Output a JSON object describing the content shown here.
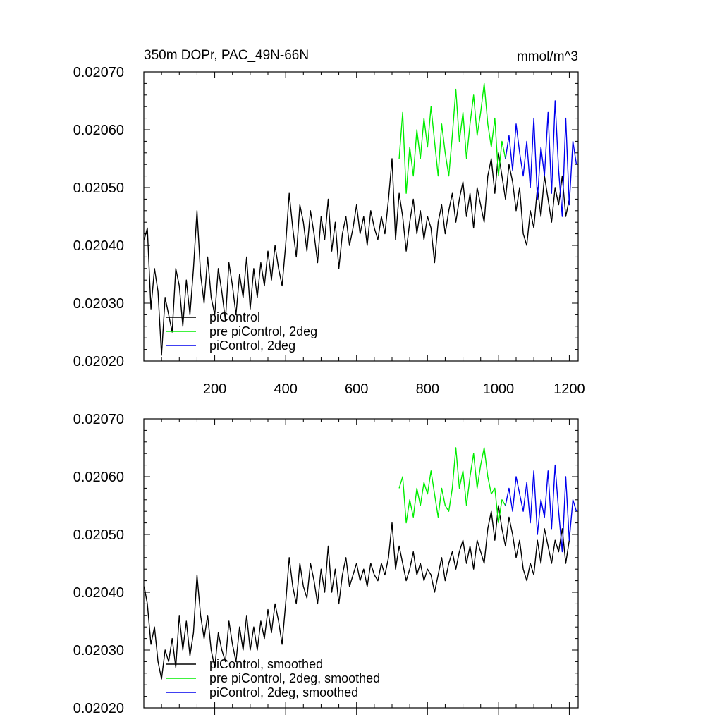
{
  "figure": {
    "title": "350m DOPr, PAC_49N-66N",
    "units": "mmol/m^3"
  },
  "colors": {
    "piControl": "#000000",
    "pre_2deg": "#00ee00",
    "pic_2deg": "#0000ee"
  },
  "chart_data": [
    {
      "type": "line",
      "panel": "top",
      "title": "350m DOPr, PAC_49N-66N",
      "units_label": "mmol/m^3",
      "xlabel": "",
      "ylabel": "",
      "xlim": [
        0,
        1225
      ],
      "ylim": [
        0.0202,
        0.0207
      ],
      "xticks": [
        "200",
        "400",
        "600",
        "800",
        "1000",
        "1200"
      ],
      "yticks": [
        "0.02020",
        "0.02030",
        "0.02040",
        "0.02050",
        "0.02060",
        "0.02070"
      ],
      "legend_position": "bottom-left",
      "series": [
        {
          "name": "piControl",
          "color_key": "piControl",
          "x": [
            1,
            10,
            20,
            30,
            40,
            50,
            60,
            70,
            80,
            90,
            100,
            110,
            120,
            130,
            140,
            150,
            160,
            170,
            180,
            190,
            200,
            210,
            220,
            230,
            240,
            250,
            260,
            270,
            280,
            290,
            300,
            310,
            320,
            330,
            340,
            350,
            360,
            370,
            380,
            390,
            400,
            410,
            420,
            430,
            440,
            450,
            460,
            470,
            480,
            490,
            500,
            510,
            520,
            530,
            540,
            550,
            560,
            570,
            580,
            590,
            600,
            610,
            620,
            630,
            640,
            650,
            660,
            670,
            680,
            690,
            700,
            710,
            720,
            730,
            740,
            750,
            760,
            770,
            780,
            790,
            800,
            810,
            820,
            830,
            840,
            850,
            860,
            870,
            880,
            890,
            900,
            910,
            920,
            930,
            940,
            950,
            960,
            970,
            980,
            990,
            1000,
            1010,
            1020,
            1030,
            1040,
            1050,
            1060,
            1070,
            1080,
            1090,
            1100,
            1110,
            1120,
            1130,
            1140,
            1150,
            1160,
            1170,
            1180,
            1190,
            1200
          ],
          "y": [
            0.02041,
            0.02043,
            0.02029,
            0.02036,
            0.02032,
            0.02021,
            0.02031,
            0.02028,
            0.02025,
            0.02036,
            0.02033,
            0.02026,
            0.02034,
            0.02028,
            0.02036,
            0.02046,
            0.02035,
            0.0203,
            0.02038,
            0.02031,
            0.02028,
            0.02036,
            0.02032,
            0.02027,
            0.02037,
            0.02033,
            0.02028,
            0.02035,
            0.02031,
            0.02038,
            0.02029,
            0.02036,
            0.02031,
            0.02037,
            0.02033,
            0.02039,
            0.02034,
            0.0204,
            0.02036,
            0.02033,
            0.0204,
            0.02049,
            0.02043,
            0.02038,
            0.02047,
            0.02044,
            0.02039,
            0.02046,
            0.02042,
            0.02037,
            0.02045,
            0.02041,
            0.02048,
            0.02039,
            0.02044,
            0.02036,
            0.02042,
            0.02045,
            0.0204,
            0.02043,
            0.02047,
            0.02042,
            0.02045,
            0.0204,
            0.02046,
            0.02043,
            0.02041,
            0.02045,
            0.02042,
            0.02048,
            0.02055,
            0.02041,
            0.02049,
            0.02045,
            0.02039,
            0.02044,
            0.02048,
            0.02042,
            0.02046,
            0.02041,
            0.02045,
            0.02043,
            0.02037,
            0.02044,
            0.02047,
            0.02042,
            0.02046,
            0.02049,
            0.02044,
            0.02048,
            0.02051,
            0.02045,
            0.02049,
            0.02043,
            0.0205,
            0.02047,
            0.02044,
            0.02052,
            0.02055,
            0.02049,
            0.02056,
            0.02052,
            0.02048,
            0.02054,
            0.02051,
            0.02046,
            0.0205,
            0.02042,
            0.0204,
            0.02046,
            0.02043,
            0.0205,
            0.02045,
            0.02052,
            0.02048,
            0.02044,
            0.0205,
            0.02047,
            0.02052,
            0.02045,
            0.02048
          ]
        },
        {
          "name": "pre piControl, 2deg",
          "color_key": "pre_2deg",
          "x": [
            720,
            730,
            740,
            750,
            760,
            770,
            780,
            790,
            800,
            810,
            820,
            830,
            840,
            850,
            860,
            870,
            880,
            890,
            900,
            910,
            920,
            930,
            940,
            950,
            960,
            970,
            980,
            990,
            1000,
            1010,
            1020
          ],
          "y": [
            0.02055,
            0.02063,
            0.02049,
            0.02057,
            0.02052,
            0.0206,
            0.02055,
            0.02062,
            0.02057,
            0.02064,
            0.02058,
            0.02052,
            0.02061,
            0.02056,
            0.02052,
            0.02059,
            0.02067,
            0.02058,
            0.02063,
            0.02055,
            0.02061,
            0.02066,
            0.02059,
            0.02063,
            0.02068,
            0.02061,
            0.02057,
            0.02062,
            0.02052,
            0.02058,
            0.02055
          ]
        },
        {
          "name": "piControl, 2deg",
          "color_key": "pic_2deg",
          "x": [
            1020,
            1030,
            1040,
            1050,
            1060,
            1070,
            1080,
            1090,
            1100,
            1110,
            1120,
            1130,
            1140,
            1150,
            1160,
            1170,
            1180,
            1190,
            1200,
            1210,
            1220
          ],
          "y": [
            0.02055,
            0.02059,
            0.02053,
            0.02061,
            0.02056,
            0.02052,
            0.02058,
            0.0205,
            0.02062,
            0.02048,
            0.02057,
            0.02052,
            0.02063,
            0.02049,
            0.02065,
            0.02053,
            0.02045,
            0.02062,
            0.02047,
            0.02058,
            0.02054
          ]
        }
      ]
    },
    {
      "type": "line",
      "panel": "bottom",
      "title": "",
      "xlabel": "",
      "ylabel": "",
      "xlim": [
        0,
        1225
      ],
      "ylim": [
        0.0202,
        0.0207
      ],
      "yticks": [
        "0.02020",
        "0.02030",
        "0.02040",
        "0.02050",
        "0.02060",
        "0.02070"
      ],
      "legend_position": "bottom-left",
      "series": [
        {
          "name": "piControl, smoothed",
          "color_key": "piControl",
          "x": [
            1,
            10,
            20,
            30,
            40,
            50,
            60,
            70,
            80,
            90,
            100,
            110,
            120,
            130,
            140,
            150,
            160,
            170,
            180,
            190,
            200,
            210,
            220,
            230,
            240,
            250,
            260,
            270,
            280,
            290,
            300,
            310,
            320,
            330,
            340,
            350,
            360,
            370,
            380,
            390,
            400,
            410,
            420,
            430,
            440,
            450,
            460,
            470,
            480,
            490,
            500,
            510,
            520,
            530,
            540,
            550,
            560,
            570,
            580,
            590,
            600,
            610,
            620,
            630,
            640,
            650,
            660,
            670,
            680,
            690,
            700,
            710,
            720,
            730,
            740,
            750,
            760,
            770,
            780,
            790,
            800,
            810,
            820,
            830,
            840,
            850,
            860,
            870,
            880,
            890,
            900,
            910,
            920,
            930,
            940,
            950,
            960,
            970,
            980,
            990,
            1000,
            1010,
            1020,
            1030,
            1040,
            1050,
            1060,
            1070,
            1080,
            1090,
            1100,
            1110,
            1120,
            1130,
            1140,
            1150,
            1160,
            1170,
            1180,
            1190,
            1200
          ],
          "y": [
            0.02041,
            0.02038,
            0.02031,
            0.02034,
            0.02028,
            0.02025,
            0.0203,
            0.02028,
            0.02032,
            0.02027,
            0.02036,
            0.0203,
            0.02035,
            0.02029,
            0.02033,
            0.02043,
            0.02036,
            0.02032,
            0.02036,
            0.0203,
            0.02027,
            0.02033,
            0.0203,
            0.02028,
            0.02035,
            0.02031,
            0.02028,
            0.02034,
            0.0203,
            0.02036,
            0.0203,
            0.02034,
            0.0203,
            0.02035,
            0.02032,
            0.02037,
            0.02033,
            0.02038,
            0.02035,
            0.02031,
            0.02038,
            0.02046,
            0.02041,
            0.02038,
            0.02045,
            0.02041,
            0.02039,
            0.02045,
            0.02042,
            0.02038,
            0.02044,
            0.0204,
            0.02048,
            0.0204,
            0.02044,
            0.02038,
            0.02043,
            0.02046,
            0.02041,
            0.02043,
            0.02045,
            0.02042,
            0.02044,
            0.02041,
            0.02045,
            0.02043,
            0.02042,
            0.02045,
            0.02043,
            0.02046,
            0.02052,
            0.02044,
            0.02048,
            0.02045,
            0.02042,
            0.02044,
            0.02047,
            0.02043,
            0.02045,
            0.02042,
            0.02044,
            0.02043,
            0.0204,
            0.02043,
            0.02046,
            0.02042,
            0.02045,
            0.02047,
            0.02044,
            0.02047,
            0.02049,
            0.02045,
            0.02048,
            0.02044,
            0.02049,
            0.02047,
            0.02045,
            0.02051,
            0.02054,
            0.02049,
            0.02055,
            0.02051,
            0.02048,
            0.02053,
            0.0205,
            0.02046,
            0.02049,
            0.02044,
            0.02042,
            0.02045,
            0.02043,
            0.02049,
            0.02045,
            0.02051,
            0.02048,
            0.02045,
            0.02049,
            0.02047,
            0.02051,
            0.02045,
            0.02049
          ]
        },
        {
          "name": "pre piControl, 2deg, smoothed",
          "color_key": "pre_2deg",
          "x": [
            720,
            730,
            740,
            750,
            760,
            770,
            780,
            790,
            800,
            810,
            820,
            830,
            840,
            850,
            860,
            870,
            880,
            890,
            900,
            910,
            920,
            930,
            940,
            950,
            960,
            970,
            980,
            990,
            1000,
            1010,
            1020
          ],
          "y": [
            0.02058,
            0.0206,
            0.02052,
            0.02056,
            0.02053,
            0.02058,
            0.02055,
            0.02059,
            0.02057,
            0.02061,
            0.02057,
            0.02053,
            0.02058,
            0.02055,
            0.02054,
            0.02058,
            0.02065,
            0.02058,
            0.02061,
            0.02055,
            0.0206,
            0.02064,
            0.02058,
            0.02062,
            0.02065,
            0.0206,
            0.02057,
            0.02058,
            0.02052,
            0.02056,
            0.02055
          ]
        },
        {
          "name": "piControl, 2deg, smoothed",
          "color_key": "pic_2deg",
          "x": [
            1020,
            1030,
            1040,
            1050,
            1060,
            1070,
            1080,
            1090,
            1100,
            1110,
            1120,
            1130,
            1140,
            1150,
            1160,
            1170,
            1180,
            1190,
            1200,
            1210,
            1220
          ],
          "y": [
            0.02055,
            0.02058,
            0.02054,
            0.0206,
            0.02057,
            0.02054,
            0.02059,
            0.02052,
            0.02061,
            0.0205,
            0.02056,
            0.02053,
            0.02061,
            0.02051,
            0.02062,
            0.02054,
            0.02047,
            0.0206,
            0.02049,
            0.02056,
            0.02054
          ]
        }
      ]
    }
  ]
}
